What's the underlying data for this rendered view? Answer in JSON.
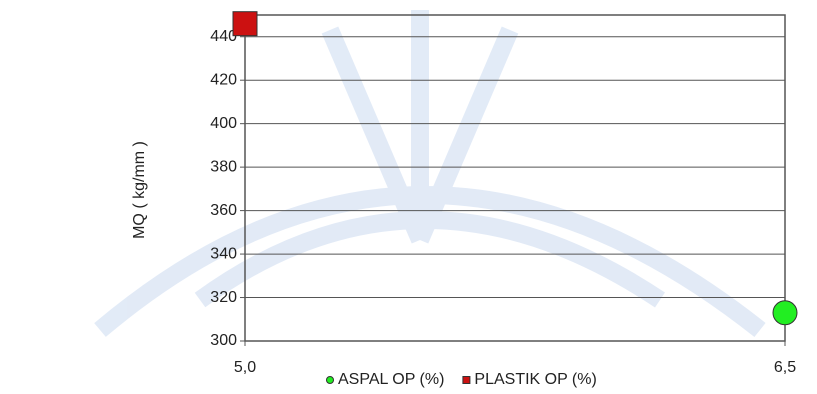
{
  "chart_data": {
    "type": "scatter",
    "y_label": "MQ ( kg/mm )",
    "xlim": [
      5,
      6.5
    ],
    "xticks": [
      {
        "value": 5,
        "label": "5,0"
      },
      {
        "value": 6.5,
        "label": "6,5"
      }
    ],
    "ylim": [
      300,
      450
    ],
    "yticks": [
      300,
      320,
      340,
      360,
      380,
      400,
      420,
      440
    ],
    "grid": true,
    "legend": "bottom",
    "series": [
      {
        "name": "ASPAL OP (%)",
        "color": "#22ee22",
        "marker": "circle",
        "x": [
          6.5
        ],
        "values": [
          313
        ]
      },
      {
        "name": "PLASTIK OP (%)",
        "color": "#cc1111",
        "marker": "square",
        "x": [
          5
        ],
        "values": [
          446
        ]
      }
    ]
  }
}
